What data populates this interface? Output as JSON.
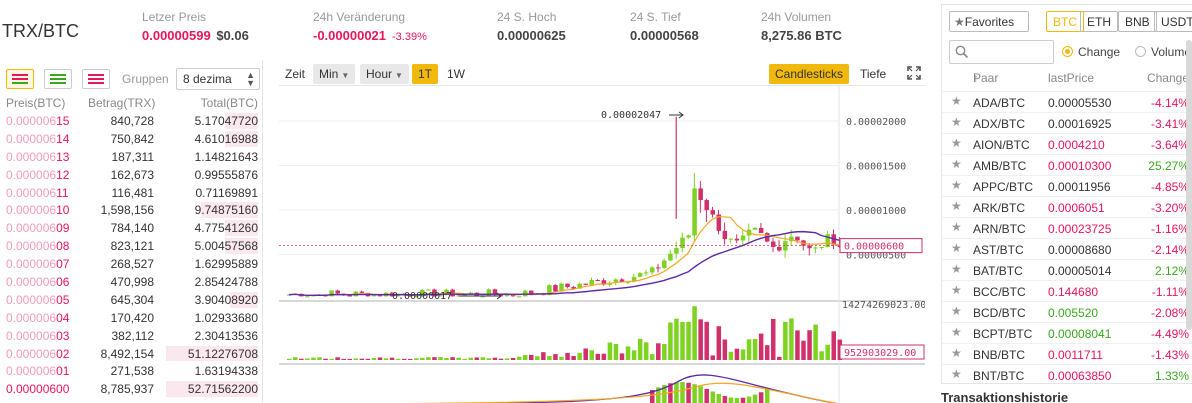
{
  "header": {
    "pair": "TRX/BTC",
    "last_price_label": "Letzer Preis",
    "last_price": "0.00000599",
    "last_price_fiat": "$0.06",
    "change_label": "24h Veränderung",
    "change_value": "-0.00000021",
    "change_pct": "-3.39%",
    "high_label": "24 S. Hoch",
    "high_value": "0.00000625",
    "low_label": "24 S. Tief",
    "low_value": "0.00000568",
    "volume_label": "24h Volumen",
    "volume_value": "8,275.86 BTC"
  },
  "orderbook": {
    "group_label": "Gruppen",
    "group_value": "8 dezima",
    "col_price": "Preis(BTC)",
    "col_amount": "Betrag(TRX)",
    "col_total": "Total(BTC)",
    "rows": [
      {
        "price_prefix": "0.000006",
        "price_suffix": "15",
        "amount": "840,728",
        "total": "5.17047720",
        "depth": 0.36
      },
      {
        "price_prefix": "0.000006",
        "price_suffix": "14",
        "amount": "750,842",
        "total": "4.61016988",
        "depth": 0.36
      },
      {
        "price_prefix": "0.000006",
        "price_suffix": "13",
        "amount": "187,311",
        "total": "1.14821643",
        "depth": 0.0
      },
      {
        "price_prefix": "0.000006",
        "price_suffix": "12",
        "amount": "162,673",
        "total": "0.99555876",
        "depth": 0.0
      },
      {
        "price_prefix": "0.000006",
        "price_suffix": "11",
        "amount": "116,481",
        "total": "0.71169891",
        "depth": 0.0
      },
      {
        "price_prefix": "0.000006",
        "price_suffix": "10",
        "amount": "1,598,156",
        "total": "9.74875160",
        "depth": 0.62
      },
      {
        "price_prefix": "0.000006",
        "price_suffix": "09",
        "amount": "784,140",
        "total": "4.77541260",
        "depth": 0.36
      },
      {
        "price_prefix": "0.000006",
        "price_suffix": "08",
        "amount": "823,121",
        "total": "5.00457568",
        "depth": 0.36
      },
      {
        "price_prefix": "0.000006",
        "price_suffix": "07",
        "amount": "268,527",
        "total": "1.62995889",
        "depth": 0.0
      },
      {
        "price_prefix": "0.000006",
        "price_suffix": "06",
        "amount": "470,998",
        "total": "2.85424788",
        "depth": 0.0
      },
      {
        "price_prefix": "0.000006",
        "price_suffix": "05",
        "amount": "645,304",
        "total": "3.90408920",
        "depth": 0.3
      },
      {
        "price_prefix": "0.000006",
        "price_suffix": "04",
        "amount": "170,420",
        "total": "1.02933680",
        "depth": 0.0
      },
      {
        "price_prefix": "0.000006",
        "price_suffix": "03",
        "amount": "382,112",
        "total": "2.30413536",
        "depth": 0.0
      },
      {
        "price_prefix": "0.000006",
        "price_suffix": "02",
        "amount": "8,492,154",
        "total": "51.12276708",
        "depth": 1.0
      },
      {
        "price_prefix": "0.000006",
        "price_suffix": "01",
        "amount": "271,538",
        "total": "1.63194338",
        "depth": 0.0
      },
      {
        "price_prefix": "0.00000600",
        "price_suffix": "",
        "amount": "8,785,937",
        "total": "52.71562200",
        "depth": 1.0
      }
    ]
  },
  "chart_toolbar": {
    "zeit": "Zeit",
    "min": "Min",
    "hour": "Hour",
    "one_t": "1T",
    "one_w": "1W",
    "candlesticks": "Candlesticks",
    "tiefe": "Tiefe"
  },
  "chart_labels": {
    "peak_label": "0.00002047",
    "low_label": "0.00000017",
    "axis_ticks": [
      "0.00002000",
      "0.00001500",
      "0.00001000",
      "0.00000500"
    ],
    "current_price_tag": "0.00000600",
    "volume_max": "14274269023.00",
    "volume_tag": "952903029.00"
  },
  "chart_data": {
    "type": "candlestick",
    "y_axis_ticks": [
      2e-05,
      1.5e-05,
      1e-05,
      5e-06
    ],
    "peak": 2.047e-05,
    "low": 1.7e-07,
    "current": 6e-06,
    "colors": {
      "up": "#7ed321",
      "down": "#d0306b",
      "ma_short": "#f5a623",
      "ma_long": "#5b2aa8"
    }
  },
  "market": {
    "favorites_label": "Favorites",
    "quotes": [
      "BTC",
      "ETH",
      "BNB",
      "USDT"
    ],
    "active_quote": "BTC",
    "radio_change": "Change",
    "radio_volume": "Volume",
    "col_pair": "Paar",
    "col_last": "lastPrice",
    "col_change": "Change",
    "rows": [
      {
        "pair": "ADA/BTC",
        "price": "0.00005530",
        "price_color": "neutral",
        "change": "-4.14%",
        "dir": "down"
      },
      {
        "pair": "ADX/BTC",
        "price": "0.00016925",
        "price_color": "neutral",
        "change": "-3.41%",
        "dir": "down"
      },
      {
        "pair": "AION/BTC",
        "price": "0.0004210",
        "price_color": "red",
        "change": "-3.64%",
        "dir": "down"
      },
      {
        "pair": "AMB/BTC",
        "price": "0.00010300",
        "price_color": "red",
        "change": "25.27%",
        "dir": "up"
      },
      {
        "pair": "APPC/BTC",
        "price": "0.00011956",
        "price_color": "neutral",
        "change": "-4.85%",
        "dir": "down"
      },
      {
        "pair": "ARK/BTC",
        "price": "0.0006051",
        "price_color": "red",
        "change": "-3.20%",
        "dir": "down"
      },
      {
        "pair": "ARN/BTC",
        "price": "0.00023725",
        "price_color": "red",
        "change": "-1.16%",
        "dir": "down"
      },
      {
        "pair": "AST/BTC",
        "price": "0.00008680",
        "price_color": "neutral",
        "change": "-2.14%",
        "dir": "down"
      },
      {
        "pair": "BAT/BTC",
        "price": "0.00005014",
        "price_color": "neutral",
        "change": "2.12%",
        "dir": "up"
      },
      {
        "pair": "BCC/BTC",
        "price": "0.144680",
        "price_color": "red",
        "change": "-1.11%",
        "dir": "down"
      },
      {
        "pair": "BCD/BTC",
        "price": "0.005520",
        "price_color": "green",
        "change": "-2.08%",
        "dir": "down"
      },
      {
        "pair": "BCPT/BTC",
        "price": "0.00008041",
        "price_color": "green",
        "change": "-4.49%",
        "dir": "down"
      },
      {
        "pair": "BNB/BTC",
        "price": "0.0011711",
        "price_color": "red",
        "change": "-1.43%",
        "dir": "down"
      },
      {
        "pair": "BNT/BTC",
        "price": "0.00063850",
        "price_color": "red",
        "change": "1.33%",
        "dir": "up"
      }
    ]
  },
  "trades_title": "Transaktionshistorie"
}
